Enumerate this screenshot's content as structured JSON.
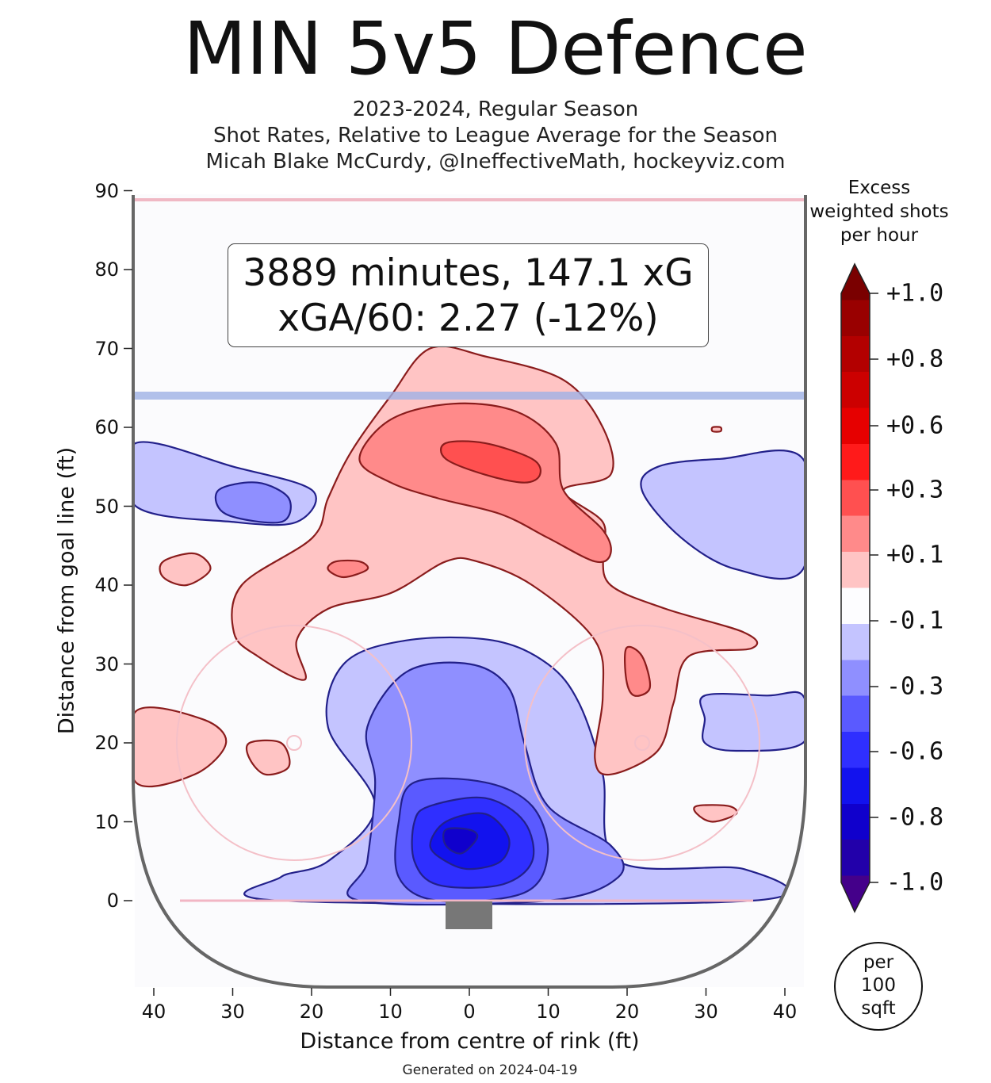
{
  "chart_data": {
    "type": "heatmap",
    "title": "MIN 5v5 Defence",
    "subtitle_lines": [
      "2023-2024, Regular Season",
      "Shot Rates, Relative to League Average for the Season",
      "Micah Blake McCurdy, @IneffectiveMath, hockeyviz.com"
    ],
    "xlabel": "Distance from centre of rink (ft)",
    "ylabel": "Distance from goal line (ft)",
    "xlim": [
      -42.5,
      42.5
    ],
    "ylim": [
      -11,
      90
    ],
    "x_ticks": [
      -40,
      -30,
      -20,
      -10,
      0,
      10,
      20,
      30,
      40
    ],
    "x_tick_labels": [
      "40",
      "30",
      "20",
      "10",
      "0",
      "10",
      "20",
      "30",
      "40"
    ],
    "y_ticks": [
      90,
      80,
      70,
      60,
      50,
      40,
      30,
      20,
      10,
      0
    ],
    "y_tick_labels": [
      "90",
      "80",
      "70",
      "60",
      "50",
      "40",
      "30",
      "20",
      "10",
      "0"
    ],
    "annotation": {
      "line1": "3889 minutes, 147.1 xG",
      "line2": "xGA/60: 2.27 (-12%)"
    },
    "colorbar": {
      "title_lines": [
        "Excess",
        "weighted shots",
        "per hour"
      ],
      "ticks": [
        {
          "value": 1.0,
          "label": "+1.0"
        },
        {
          "value": 0.8,
          "label": "+0.8"
        },
        {
          "value": 0.6,
          "label": "+0.6"
        },
        {
          "value": 0.3,
          "label": "+0.3"
        },
        {
          "value": 0.1,
          "label": "+0.1"
        },
        {
          "value": -0.1,
          "label": "-0.1"
        },
        {
          "value": -0.3,
          "label": "-0.3"
        },
        {
          "value": -0.6,
          "label": "-0.6"
        },
        {
          "value": -0.8,
          "label": "-0.8"
        },
        {
          "value": -1.0,
          "label": "-1.0"
        }
      ],
      "colors": [
        "#7a0000",
        "#990000",
        "#b30000",
        "#cc0000",
        "#e60000",
        "#ff1a1a",
        "#ff5050",
        "#ff8a8a",
        "#ffc4c4",
        "#fdfdff",
        "#c4c4ff",
        "#8f8fff",
        "#5a5aff",
        "#2f2fff",
        "#1212ee",
        "#1000cc",
        "#2200aa",
        "#44008a"
      ],
      "units_lines": [
        "per",
        "100",
        "sqft"
      ]
    },
    "contours": [
      {
        "name": "neg-band-1",
        "level": -0.1,
        "color": "#c4c4ff",
        "points": [
          [
            -42.5,
            58
          ],
          [
            -30,
            55
          ],
          [
            -20,
            52
          ],
          [
            -22,
            48
          ],
          [
            -30,
            48
          ],
          [
            -42.5,
            50
          ]
        ]
      },
      {
        "name": "neg-band-1",
        "level": -0.1,
        "color": "#c4c4ff",
        "points": [
          [
            24,
            55
          ],
          [
            32,
            56
          ],
          [
            42.5,
            56
          ],
          [
            42.5,
            42
          ],
          [
            34,
            42
          ],
          [
            27,
            46
          ],
          [
            22,
            52
          ]
        ]
      },
      {
        "name": "neg-band-1",
        "level": -0.1,
        "color": "#c4c4ff",
        "points": [
          [
            30,
            26
          ],
          [
            38,
            26
          ],
          [
            42.5,
            26
          ],
          [
            42.5,
            20
          ],
          [
            34,
            19
          ],
          [
            30,
            20
          ],
          [
            30,
            23
          ]
        ]
      },
      {
        "name": "neg-band-1",
        "level": -0.1,
        "color": "#c4c4ff",
        "points": [
          [
            -16,
            30
          ],
          [
            -8,
            33
          ],
          [
            3,
            33
          ],
          [
            10,
            30
          ],
          [
            14,
            25
          ],
          [
            17,
            16
          ],
          [
            19,
            5
          ],
          [
            35,
            4
          ],
          [
            36,
            0
          ],
          [
            -24,
            0
          ],
          [
            -24,
            3
          ],
          [
            -18,
            5
          ],
          [
            -12,
            12
          ],
          [
            -18,
            22
          ]
        ]
      },
      {
        "name": "neg-band-2",
        "level": -0.2,
        "color": "#8f8fff",
        "points": [
          [
            -32,
            52
          ],
          [
            -27,
            53
          ],
          [
            -23,
            51
          ],
          [
            -24,
            48
          ],
          [
            -31,
            49
          ]
        ]
      },
      {
        "name": "neg-band-2",
        "level": -0.2,
        "color": "#8f8fff",
        "points": [
          [
            -8,
            29
          ],
          [
            0,
            30
          ],
          [
            5,
            27
          ],
          [
            7,
            20
          ],
          [
            10,
            12
          ],
          [
            18,
            7
          ],
          [
            19,
            3
          ],
          [
            10,
            0
          ],
          [
            -14,
            0
          ],
          [
            -13,
            5
          ],
          [
            -12,
            15
          ],
          [
            -13,
            22
          ]
        ]
      },
      {
        "name": "neg-band-3",
        "level": -0.3,
        "color": "#5a5aff",
        "points": [
          [
            -7,
            15
          ],
          [
            2,
            15
          ],
          [
            8,
            12
          ],
          [
            10,
            6
          ],
          [
            7,
            1
          ],
          [
            -4,
            0
          ],
          [
            -9,
            3
          ],
          [
            -9,
            10
          ]
        ]
      },
      {
        "name": "neg-band-4",
        "level": -0.5,
        "color": "#2f2fff",
        "points": [
          [
            -5,
            12
          ],
          [
            2,
            13
          ],
          [
            7,
            10
          ],
          [
            8,
            5
          ],
          [
            4,
            2
          ],
          [
            -4,
            2
          ],
          [
            -7,
            5
          ],
          [
            -7,
            10
          ]
        ]
      },
      {
        "name": "neg-band-5",
        "level": -0.7,
        "color": "#1212ee",
        "points": [
          [
            -3,
            10
          ],
          [
            2,
            11
          ],
          [
            5,
            8
          ],
          [
            4,
            5
          ],
          [
            0,
            4
          ],
          [
            -3,
            5
          ],
          [
            -5,
            7
          ]
        ]
      },
      {
        "name": "neg-band-6",
        "level": -0.9,
        "color": "#1000cc",
        "points": [
          [
            -3,
            9
          ],
          [
            0,
            9
          ],
          [
            1,
            8
          ],
          [
            -1,
            6
          ],
          [
            -3,
            7
          ]
        ]
      },
      {
        "name": "pos-band-1",
        "level": 0.1,
        "color": "#ffc4c4",
        "points": [
          [
            -5,
            70
          ],
          [
            2,
            69
          ],
          [
            12,
            66
          ],
          [
            17,
            60
          ],
          [
            18,
            54
          ],
          [
            12,
            52
          ],
          [
            17,
            48
          ],
          [
            17,
            44
          ],
          [
            18,
            40
          ],
          [
            25,
            37
          ],
          [
            35,
            34
          ],
          [
            36,
            32
          ],
          [
            28,
            31
          ],
          [
            26,
            25
          ],
          [
            24,
            19
          ],
          [
            18,
            16
          ],
          [
            16,
            18
          ],
          [
            17,
            26
          ],
          [
            16,
            33
          ],
          [
            8,
            40
          ],
          [
            1,
            43
          ],
          [
            -3,
            43
          ],
          [
            -10,
            39
          ],
          [
            -18,
            37
          ],
          [
            -22,
            33
          ],
          [
            -21,
            28
          ],
          [
            -27,
            31
          ],
          [
            -30,
            34
          ],
          [
            -29,
            40
          ],
          [
            -20,
            46
          ],
          [
            -18,
            51
          ],
          [
            -15,
            57
          ],
          [
            -10,
            64
          ]
        ]
      },
      {
        "name": "pos-band-1",
        "level": 0.1,
        "color": "#ffc4c4",
        "points": [
          [
            -42.5,
            24
          ],
          [
            -34,
            23
          ],
          [
            -31,
            20
          ],
          [
            -35,
            16
          ],
          [
            -42.5,
            15
          ]
        ]
      },
      {
        "name": "pos-band-1",
        "level": 0.1,
        "color": "#ffc4c4",
        "points": [
          [
            -39,
            43
          ],
          [
            -35,
            44
          ],
          [
            -33,
            42
          ],
          [
            -36,
            40
          ],
          [
            -39,
            41
          ]
        ]
      },
      {
        "name": "pos-band-1",
        "level": 0.1,
        "color": "#ffc4c4",
        "points": [
          [
            -28,
            20
          ],
          [
            -24,
            20
          ],
          [
            -23,
            17
          ],
          [
            -26,
            16
          ],
          [
            -28,
            18
          ]
        ]
      },
      {
        "name": "pos-band-1",
        "level": 0.1,
        "color": "#ffc4c4",
        "points": [
          [
            29,
            12
          ],
          [
            33,
            12
          ],
          [
            34,
            11
          ],
          [
            31,
            10
          ],
          [
            29,
            11
          ]
        ]
      },
      {
        "name": "pos-band-1",
        "level": 0.1,
        "color": "#ffc4c4",
        "points": [
          [
            31,
            60
          ],
          [
            32,
            60
          ],
          [
            32,
            59.5
          ],
          [
            31,
            59.5
          ]
        ]
      },
      {
        "name": "pos-band-2",
        "level": 0.2,
        "color": "#ff8a8a",
        "points": [
          [
            -10,
            61
          ],
          [
            -2,
            63
          ],
          [
            6,
            62
          ],
          [
            11,
            58
          ],
          [
            12,
            52
          ],
          [
            17,
            47
          ],
          [
            18,
            44
          ],
          [
            16,
            43
          ],
          [
            10,
            46
          ],
          [
            4,
            49
          ],
          [
            -4,
            51
          ],
          [
            -10,
            53
          ],
          [
            -14,
            56
          ]
        ]
      },
      {
        "name": "pos-band-2",
        "level": 0.2,
        "color": "#ff8a8a",
        "points": [
          [
            -17,
            43
          ],
          [
            -14,
            43
          ],
          [
            -13,
            42
          ],
          [
            -16,
            41
          ],
          [
            -18,
            42
          ]
        ]
      },
      {
        "name": "pos-band-2",
        "level": 0.2,
        "color": "#ff8a8a",
        "points": [
          [
            20,
            32
          ],
          [
            22,
            31
          ],
          [
            23,
            27
          ],
          [
            21,
            26
          ],
          [
            20,
            28
          ]
        ]
      },
      {
        "name": "pos-band-3",
        "level": 0.4,
        "color": "#ff5050",
        "points": [
          [
            -3,
            58
          ],
          [
            2,
            58
          ],
          [
            8,
            56
          ],
          [
            9,
            54
          ],
          [
            7,
            53
          ],
          [
            2,
            54
          ],
          [
            -3,
            56
          ]
        ]
      }
    ]
  }
}
